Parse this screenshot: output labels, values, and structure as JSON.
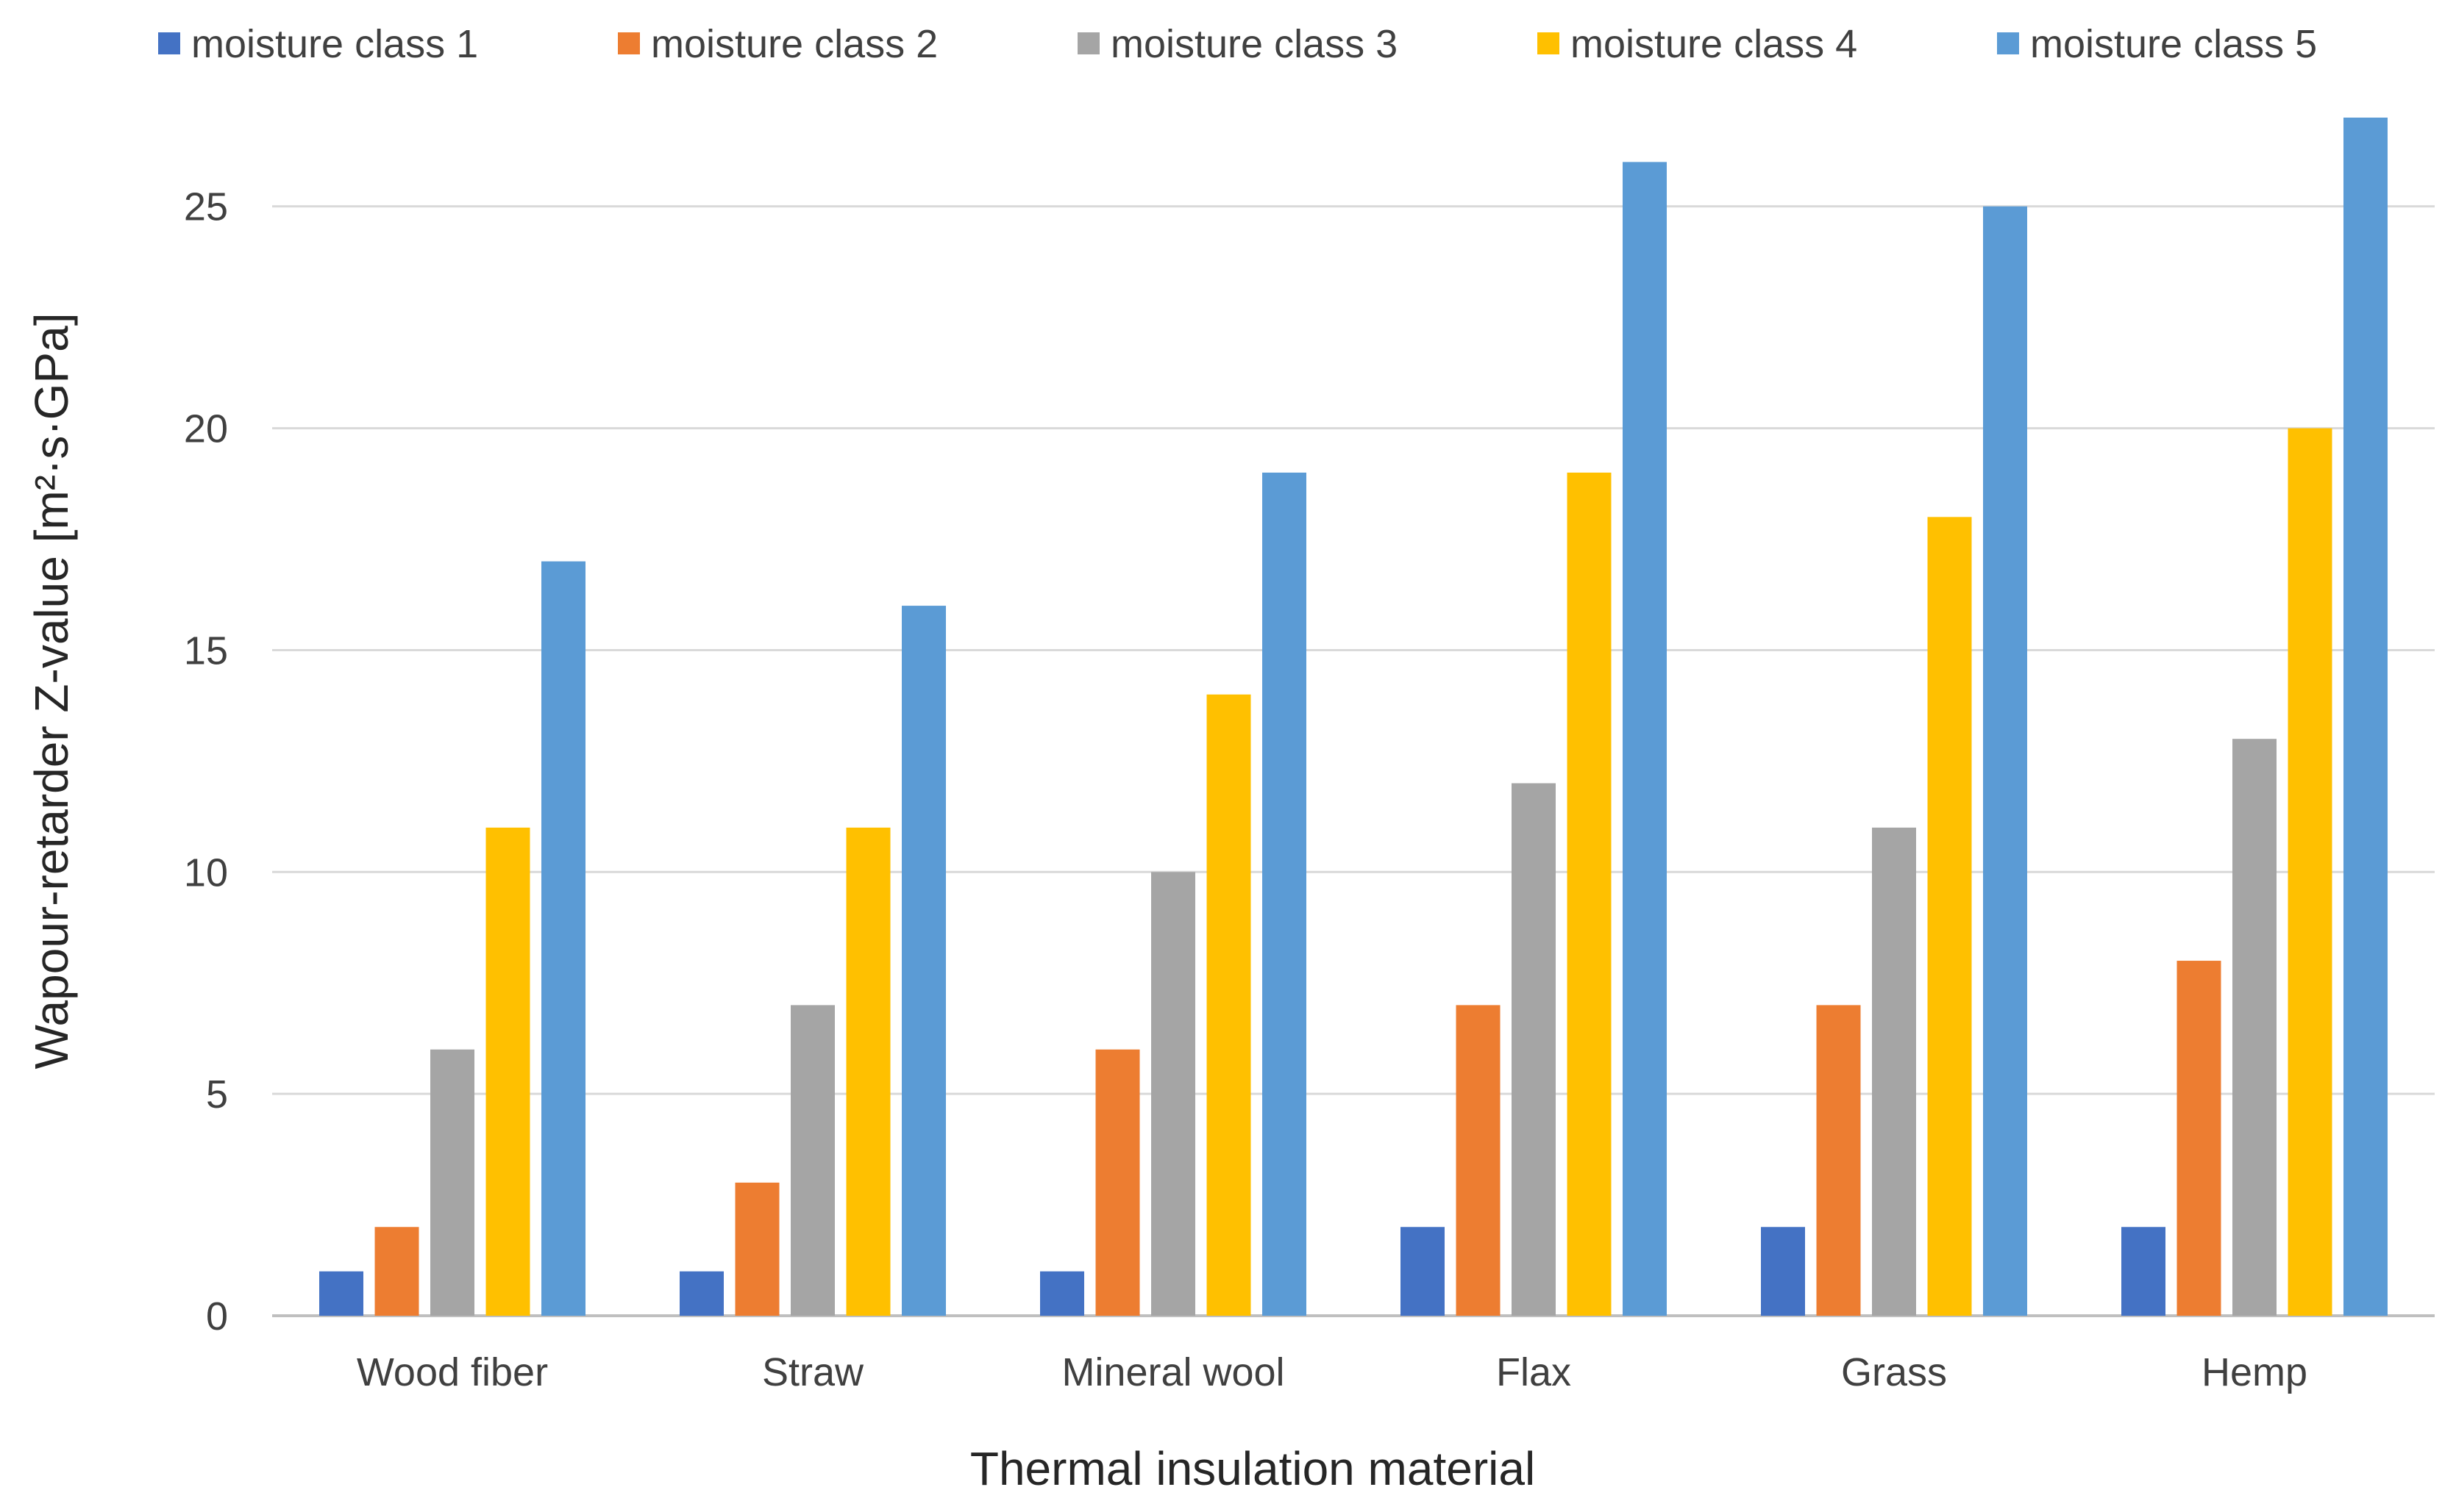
{
  "chart_data": {
    "type": "bar",
    "title": "",
    "xlabel": "Thermal insulation material",
    "ylabel": "Wapour-retarder Z-value [m²·s·GPa]",
    "categories": [
      "Wood fiber",
      "Straw",
      "Mineral wool",
      "Flax",
      "Grass",
      "Hemp"
    ],
    "series": [
      {
        "name": "moisture class 1",
        "color": "#4472C4",
        "values": [
          1,
          1,
          1,
          2,
          2,
          2
        ]
      },
      {
        "name": "moisture class 2",
        "color": "#ED7D31",
        "values": [
          2,
          3,
          6,
          7,
          7,
          8
        ]
      },
      {
        "name": "moisture class 3",
        "color": "#A5A5A5",
        "values": [
          6,
          7,
          10,
          12,
          11,
          13
        ]
      },
      {
        "name": "moisture class 4",
        "color": "#FFC000",
        "values": [
          11,
          11,
          14,
          19,
          18,
          20
        ]
      },
      {
        "name": "moisture class 5",
        "color": "#5B9BD5",
        "values": [
          17,
          16,
          19,
          26,
          25,
          27
        ]
      }
    ],
    "ylim": [
      0,
      27
    ],
    "yticks": [
      0,
      5,
      10,
      15,
      20,
      25
    ],
    "grid": true,
    "legend_position": "top"
  }
}
